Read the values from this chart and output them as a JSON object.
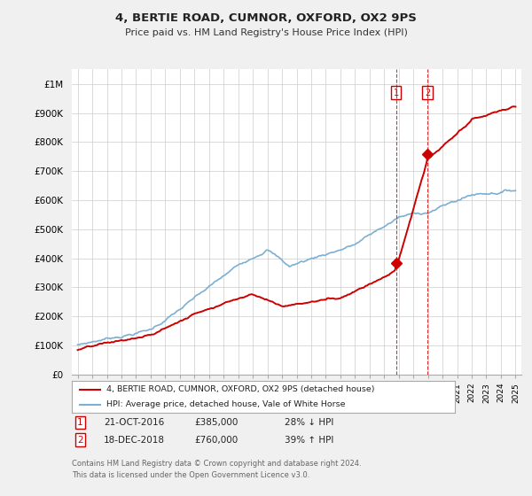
{
  "title": "4, BERTIE ROAD, CUMNOR, OXFORD, OX2 9PS",
  "subtitle": "Price paid vs. HM Land Registry's House Price Index (HPI)",
  "ylim": [
    0,
    1050000
  ],
  "yticks": [
    0,
    100000,
    200000,
    300000,
    400000,
    500000,
    600000,
    700000,
    800000,
    900000,
    1000000
  ],
  "ytick_labels": [
    "£0",
    "£100K",
    "£200K",
    "£300K",
    "£400K",
    "£500K",
    "£600K",
    "£700K",
    "£800K",
    "£900K",
    "£1M"
  ],
  "hpi_color": "#7bafd4",
  "price_color": "#cc0000",
  "marker_color": "#cc0000",
  "vline_color": "#cc0000",
  "legend_box_color": "#cc0000",
  "sale1_date": "21-OCT-2016",
  "sale1_price": 385000,
  "sale1_pct": "28% ↓ HPI",
  "sale1_label": "1",
  "sale1_x": 2016.81,
  "sale2_date": "18-DEC-2018",
  "sale2_price": 760000,
  "sale2_pct": "39% ↑ HPI",
  "sale2_label": "2",
  "sale2_x": 2018.96,
  "legend_line1": "4, BERTIE ROAD, CUMNOR, OXFORD, OX2 9PS (detached house)",
  "legend_line2": "HPI: Average price, detached house, Vale of White Horse",
  "footer1": "Contains HM Land Registry data © Crown copyright and database right 2024.",
  "footer2": "This data is licensed under the Open Government Licence v3.0.",
  "bg_color": "#f0f0f0",
  "plot_bg_color": "#ffffff"
}
